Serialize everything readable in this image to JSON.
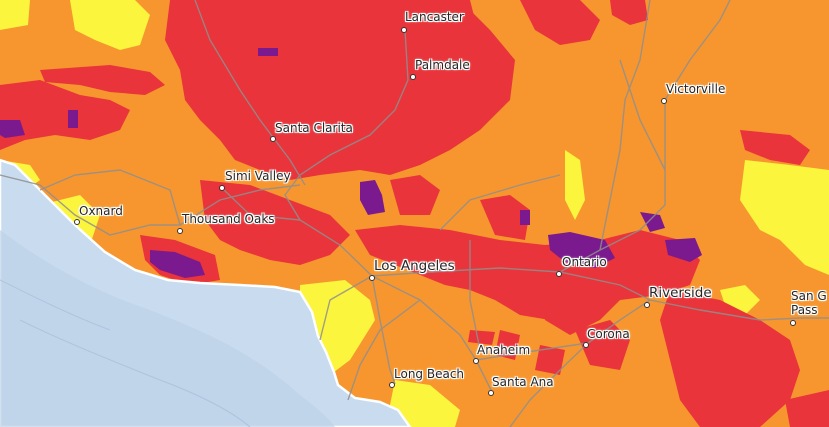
{
  "colors": {
    "ocean": "#c9dcef",
    "ocean_deep": "#b7cde4",
    "yellow": "#fbf53e",
    "orange": "#f7962e",
    "red": "#e8343a",
    "purple": "#7a1a8e",
    "road": "#8f8f8f",
    "coast": "#ffffff"
  },
  "cities": [
    {
      "id": "lancaster",
      "name": "Lancaster"
    },
    {
      "id": "palmdale",
      "name": "Palmdale"
    },
    {
      "id": "victorville",
      "name": "Victorville"
    },
    {
      "id": "santa-clarita",
      "name": "Santa Clarita"
    },
    {
      "id": "simi-valley",
      "name": "Simi Valley"
    },
    {
      "id": "oxnard",
      "name": "Oxnard"
    },
    {
      "id": "thousand-oaks",
      "name": "Thousand Oaks"
    },
    {
      "id": "los-angeles",
      "name": "Los Angeles"
    },
    {
      "id": "ontario",
      "name": "Ontario"
    },
    {
      "id": "riverside",
      "name": "Riverside"
    },
    {
      "id": "corona",
      "name": "Corona"
    },
    {
      "id": "anaheim",
      "name": "Anaheim"
    },
    {
      "id": "long-beach",
      "name": "Long Beach"
    },
    {
      "id": "santa-ana",
      "name": "Santa Ana"
    },
    {
      "id": "san-gorgonio-pass",
      "name": "San Go\nPass"
    }
  ]
}
